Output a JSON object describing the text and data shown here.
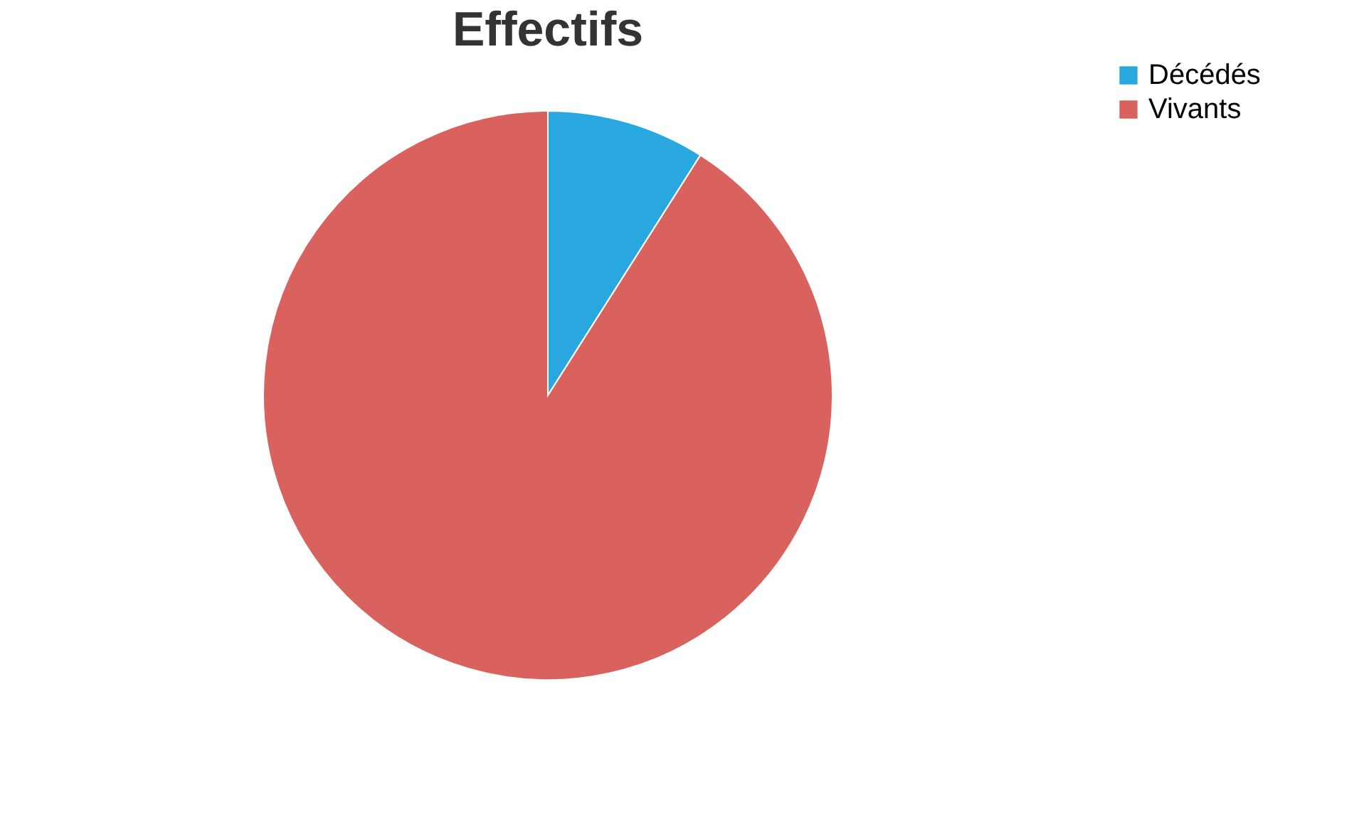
{
  "chart_data": {
    "type": "pie",
    "title": "Effectifs",
    "categories": [
      "Décédés",
      "Vivants"
    ],
    "values": [
      9,
      91
    ],
    "colors": [
      "#29a8e0",
      "#d9625f"
    ],
    "legend": "right"
  }
}
